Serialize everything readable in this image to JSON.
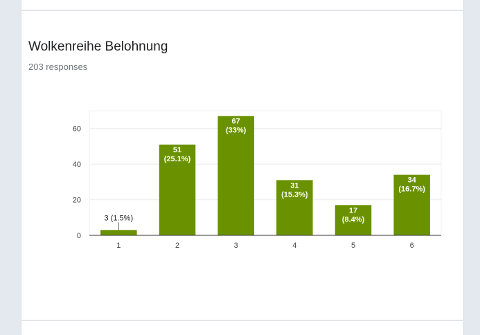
{
  "question": {
    "title": "Wolkenreihe Belohnung",
    "responses_text": "203 responses"
  },
  "chart_data": {
    "type": "bar",
    "title": "Wolkenreihe Belohnung",
    "categories": [
      "1",
      "2",
      "3",
      "4",
      "5",
      "6"
    ],
    "values": [
      3,
      51,
      67,
      31,
      17,
      34
    ],
    "data_labels": [
      [
        "3 (1.5%)"
      ],
      [
        "51",
        "(25.1%)"
      ],
      [
        "67",
        "(33%)"
      ],
      [
        "31",
        "(15.3%)"
      ],
      [
        "17",
        "(8.4%)"
      ],
      [
        "34",
        "(16.7%)"
      ]
    ],
    "ylim": [
      0,
      70
    ],
    "yticks": [
      0,
      20,
      40,
      60
    ],
    "grid": true,
    "bar_color": "#6a9200",
    "xlabel": "",
    "ylabel": ""
  }
}
